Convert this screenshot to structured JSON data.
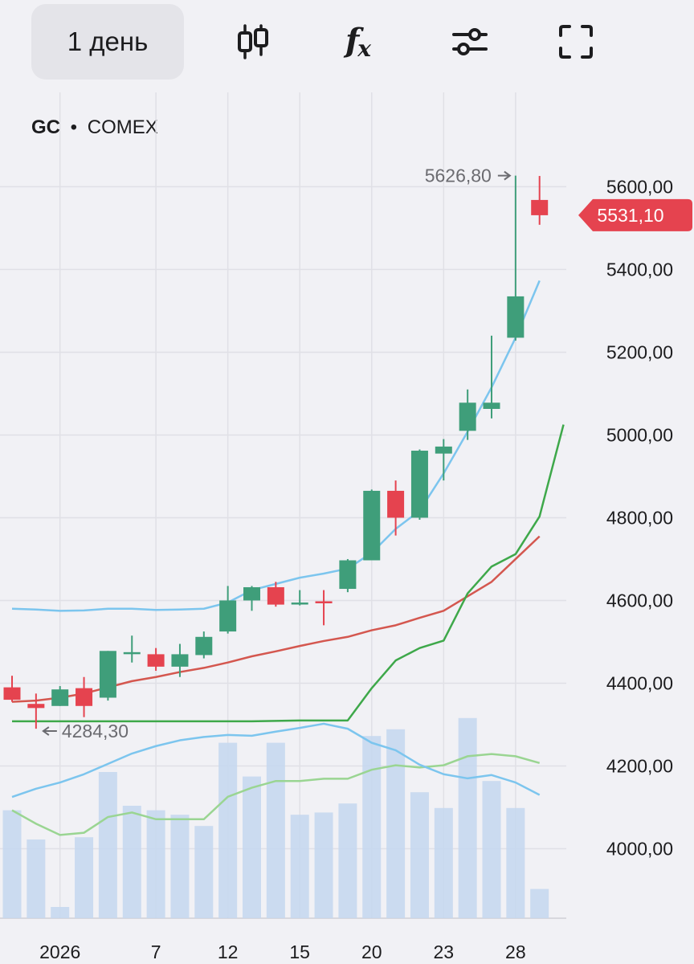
{
  "toolbar": {
    "period_label": "1 день",
    "icons": [
      "candles-icon",
      "fx-icon",
      "settings-sliders-icon",
      "fullscreen-icon"
    ],
    "fx_label": "f",
    "fx_sub": "x"
  },
  "symbol": {
    "ticker": "GC",
    "separator": "•",
    "exchange": "COMEX"
  },
  "colors": {
    "up": "#3f9e7a",
    "down": "#e5434f",
    "bb": "#7cc5ee",
    "ma_red": "#d4574f",
    "ma_green": "#3ea84a",
    "volume": "#c4d7ee",
    "vol_ma": "#9ad592",
    "price_tag": "#e5434f"
  },
  "chart_data": {
    "type": "candlestick",
    "y_ticks": [
      "5600,00",
      "5400,00",
      "5200,00",
      "5000,00",
      "4800,00",
      "4600,00",
      "4400,00",
      "4200,00",
      "4000,00"
    ],
    "y_tick_values": [
      5600,
      5400,
      5200,
      5000,
      4800,
      4600,
      4400,
      4200,
      4000
    ],
    "ylim": [
      3832,
      5828
    ],
    "x_tick_labels": [
      {
        "label": "2026",
        "index": 2
      },
      {
        "label": "7",
        "index": 6
      },
      {
        "label": "12",
        "index": 9
      },
      {
        "label": "15",
        "index": 12
      },
      {
        "label": "20",
        "index": 15
      },
      {
        "label": "23",
        "index": 18
      },
      {
        "label": "28",
        "index": 21
      }
    ],
    "candles": [
      {
        "o": 4390,
        "h": 4418,
        "l": 4355,
        "c": 4360
      },
      {
        "o": 4350,
        "h": 4375,
        "l": 4290,
        "c": 4340
      },
      {
        "o": 4345,
        "h": 4393,
        "l": 4345,
        "c": 4385
      },
      {
        "o": 4388,
        "h": 4415,
        "l": 4318,
        "c": 4345
      },
      {
        "o": 4365,
        "h": 4478,
        "l": 4358,
        "c": 4478
      },
      {
        "o": 4475,
        "h": 4515,
        "l": 4450,
        "c": 4475
      },
      {
        "o": 4470,
        "h": 4485,
        "l": 4430,
        "c": 4440
      },
      {
        "o": 4440,
        "h": 4495,
        "l": 4415,
        "c": 4470
      },
      {
        "o": 4468,
        "h": 4525,
        "l": 4460,
        "c": 4512
      },
      {
        "o": 4525,
        "h": 4635,
        "l": 4520,
        "c": 4600
      },
      {
        "o": 4600,
        "h": 4635,
        "l": 4575,
        "c": 4632
      },
      {
        "o": 4632,
        "h": 4645,
        "l": 4585,
        "c": 4590
      },
      {
        "o": 4595,
        "h": 4625,
        "l": 4588,
        "c": 4595
      },
      {
        "o": 4598,
        "h": 4625,
        "l": 4540,
        "c": 4597
      },
      {
        "o": 4628,
        "h": 4700,
        "l": 4620,
        "c": 4697
      },
      {
        "o": 4697,
        "h": 4868,
        "l": 4697,
        "c": 4865
      },
      {
        "o": 4865,
        "h": 4890,
        "l": 4757,
        "c": 4800
      },
      {
        "o": 4800,
        "h": 4965,
        "l": 4795,
        "c": 4962
      },
      {
        "o": 4955,
        "h": 4990,
        "l": 4890,
        "c": 4972
      },
      {
        "o": 5010,
        "h": 5110,
        "l": 4988,
        "c": 5078
      },
      {
        "o": 5063,
        "h": 5240,
        "l": 5040,
        "c": 5078
      },
      {
        "o": 5235,
        "h": 5626.8,
        "l": 5228,
        "c": 5335
      },
      {
        "o": 5568,
        "h": 5626,
        "l": 5508,
        "c": 5531.1
      }
    ],
    "bb_upper": [
      4580,
      4578,
      4575,
      4576,
      4580,
      4580,
      4577,
      4578,
      4580,
      4595,
      4625,
      4640,
      4655,
      4665,
      4677,
      4715,
      4773,
      4817,
      4907,
      5008,
      5115,
      5235,
      5373
    ],
    "bb_lower": [
      4125,
      4145,
      4160,
      4180,
      4205,
      4230,
      4248,
      4262,
      4270,
      4275,
      4273,
      4283,
      4292,
      4302,
      4290,
      4256,
      4238,
      4203,
      4180,
      4170,
      4178,
      4160,
      4130
    ],
    "ma_red": [
      4355,
      4358,
      4365,
      4375,
      4390,
      4405,
      4415,
      4427,
      4437,
      4450,
      4465,
      4477,
      4490,
      4502,
      4512,
      4528,
      4540,
      4558,
      4575,
      4610,
      4645,
      4700,
      4755
    ],
    "ma_green": [
      4308,
      4308,
      4308,
      4308,
      4308,
      4308,
      4308,
      4308,
      4308,
      4308,
      4308,
      4309,
      4310,
      4310,
      4310,
      4388,
      4455,
      4485,
      4503,
      4617,
      4682,
      4712,
      4803
    ],
    "ma_green_extra": [
      5025
    ],
    "volume": [
      48,
      35,
      5,
      36,
      65,
      50,
      48,
      46,
      41,
      78,
      63,
      78,
      46,
      47,
      51,
      81,
      84,
      56,
      49,
      89,
      61,
      49,
      13
    ],
    "volume_ma": [
      48,
      42,
      37,
      38,
      45,
      47,
      44,
      44,
      44,
      54,
      58,
      61,
      61,
      62,
      62,
      66,
      68,
      67,
      68,
      72,
      73,
      72,
      69
    ],
    "annotations": {
      "high_label": "5626,80",
      "low_label": "4284,30",
      "high_value": 5626.8,
      "low_value": 4284.3,
      "last_price_label": "5531,10",
      "last_price": 5531.1,
      "high_index": 21,
      "low_index": 1
    }
  }
}
